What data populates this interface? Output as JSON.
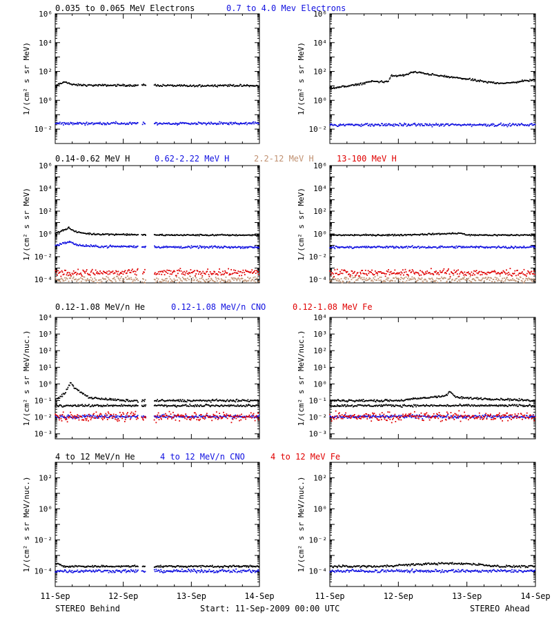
{
  "colors": {
    "black": "#000000",
    "blue": "#1010e0",
    "tan": "#c09070",
    "red": "#e00000"
  },
  "x_ticks": [
    "11-Sep",
    "12-Sep",
    "13-Sep",
    "14-Sep"
  ],
  "footer": {
    "left": "STEREO Behind",
    "center": "Start: 11-Sep-2009 00:00 UTC",
    "right": "STEREO Ahead"
  },
  "rows": [
    {
      "legend": [
        {
          "text": "0.035 to 0.065 MeV Electrons",
          "color": "black"
        },
        {
          "text": "0.7 to 4.0 Mev Electrons",
          "color": "blue"
        }
      ],
      "ylabel": "1/(cm² s sr MeV)",
      "yticks": [
        {
          "exp": -2,
          "label": "10⁻²"
        },
        {
          "exp": 0,
          "label": "10⁰"
        },
        {
          "exp": 2,
          "label": "10²"
        },
        {
          "exp": 4,
          "label": "10⁴"
        },
        {
          "exp": 6,
          "label": "10⁶"
        }
      ]
    },
    {
      "legend": [
        {
          "text": "0.14-0.62 MeV H",
          "color": "black"
        },
        {
          "text": "0.62-2.22 MeV H",
          "color": "blue"
        },
        {
          "text": "2.2-12 MeV H",
          "color": "tan"
        },
        {
          "text": "13-100 MeV H",
          "color": "red"
        }
      ],
      "ylabel": "1/(cm² s sr MeV)",
      "yticks": [
        {
          "exp": -4,
          "label": "10⁻⁴"
        },
        {
          "exp": -2,
          "label": "10⁻²"
        },
        {
          "exp": 0,
          "label": "10⁰"
        },
        {
          "exp": 2,
          "label": "10²"
        },
        {
          "exp": 4,
          "label": "10⁴"
        },
        {
          "exp": 6,
          "label": "10⁶"
        }
      ]
    },
    {
      "legend": [
        {
          "text": "0.12-1.08 MeV/n He",
          "color": "black"
        },
        {
          "text": "0.12-1.08 MeV/n CNO",
          "color": "blue"
        },
        {
          "text": "0.12-1.08 MeV Fe",
          "color": "red"
        }
      ],
      "ylabel": "1/(cm² s sr MeV/nuc.)",
      "yticks": [
        {
          "exp": -3,
          "label": "10⁻³"
        },
        {
          "exp": -2,
          "label": "10⁻²"
        },
        {
          "exp": -1,
          "label": "10⁻¹"
        },
        {
          "exp": 0,
          "label": "10⁰"
        },
        {
          "exp": 1,
          "label": "10¹"
        },
        {
          "exp": 2,
          "label": "10²"
        },
        {
          "exp": 3,
          "label": "10³"
        },
        {
          "exp": 4,
          "label": "10⁴"
        }
      ]
    },
    {
      "legend": [
        {
          "text": "4 to 12 MeV/n He",
          "color": "black"
        },
        {
          "text": "4 to 12 MeV/n CNO",
          "color": "blue"
        },
        {
          "text": "4 to 12 MeV Fe",
          "color": "red"
        }
      ],
      "ylabel": "1/(cm² s sr MeV/nuc.)",
      "yticks": [
        {
          "exp": -4,
          "label": "10⁻⁴"
        },
        {
          "exp": -2,
          "label": "10⁻²"
        },
        {
          "exp": 0,
          "label": "10⁰"
        },
        {
          "exp": 2,
          "label": "10²"
        }
      ]
    }
  ],
  "chart_data": [
    {
      "panel": "row1-behind",
      "type": "scatter",
      "yscale": "log",
      "ylim": [
        0.001,
        1000000
      ],
      "xlim": [
        "11-Sep-2009",
        "14-Sep-2009"
      ],
      "series": [
        {
          "color": "black",
          "points": [
            [
              0.0,
              10
            ],
            [
              0.15,
              20
            ],
            [
              0.25,
              12
            ],
            [
              0.5,
              11
            ],
            [
              1.0,
              11
            ],
            [
              1.2,
              11
            ],
            [
              1.38,
              12
            ],
            [
              1.5,
              11
            ],
            [
              2.0,
              10
            ],
            [
              2.5,
              11
            ],
            [
              3.0,
              10
            ]
          ]
        },
        {
          "color": "blue",
          "points": [
            [
              0.0,
              0.025
            ],
            [
              0.5,
              0.025
            ],
            [
              1.0,
              0.025
            ],
            [
              1.25,
              0.025
            ],
            [
              1.5,
              0.025
            ],
            [
              2.0,
              0.025
            ],
            [
              2.5,
              0.025
            ],
            [
              3.0,
              0.025
            ]
          ]
        }
      ],
      "gaps": [
        [
          1.22,
          1.27
        ],
        [
          1.33,
          1.45
        ]
      ]
    },
    {
      "panel": "row1-ahead",
      "type": "scatter",
      "yscale": "log",
      "ylim": [
        0.001,
        1000000
      ],
      "xlim": [
        "11-Sep-2009",
        "14-Sep-2009"
      ],
      "series": [
        {
          "color": "black",
          "points": [
            [
              0.0,
              7
            ],
            [
              0.3,
              10
            ],
            [
              0.6,
              20
            ],
            [
              0.85,
              20
            ],
            [
              0.9,
              50
            ],
            [
              1.1,
              55
            ],
            [
              1.2,
              90
            ],
            [
              1.35,
              80
            ],
            [
              1.6,
              50
            ],
            [
              2.0,
              30
            ],
            [
              2.3,
              18
            ],
            [
              2.6,
              15
            ],
            [
              2.8,
              22
            ],
            [
              3.0,
              25
            ]
          ]
        },
        {
          "color": "blue",
          "points": [
            [
              0.0,
              0.02
            ],
            [
              0.5,
              0.02
            ],
            [
              1.0,
              0.02
            ],
            [
              1.5,
              0.02
            ],
            [
              2.0,
              0.02
            ],
            [
              2.5,
              0.02
            ],
            [
              3.0,
              0.02
            ]
          ]
        }
      ],
      "gaps": []
    },
    {
      "panel": "row2-behind",
      "type": "scatter",
      "yscale": "log",
      "ylim": [
        5e-05,
        1000000
      ],
      "xlim": [
        "11-Sep-2009",
        "14-Sep-2009"
      ],
      "series": [
        {
          "color": "black",
          "points": [
            [
              0.0,
              1.2
            ],
            [
              0.1,
              2
            ],
            [
              0.2,
              3.5
            ],
            [
              0.3,
              1.5
            ],
            [
              0.5,
              1
            ],
            [
              1.0,
              0.9
            ],
            [
              1.5,
              0.8
            ],
            [
              2.0,
              0.8
            ],
            [
              2.5,
              0.8
            ],
            [
              3.0,
              0.8
            ]
          ]
        },
        {
          "color": "blue",
          "points": [
            [
              0.0,
              0.1
            ],
            [
              0.2,
              0.2
            ],
            [
              0.35,
              0.1
            ],
            [
              0.6,
              0.08
            ],
            [
              1.0,
              0.08
            ],
            [
              1.5,
              0.07
            ],
            [
              2.0,
              0.07
            ],
            [
              2.5,
              0.07
            ],
            [
              3.0,
              0.07
            ]
          ]
        },
        {
          "color": "tan",
          "points": [
            [
              0.0,
              0.0001
            ],
            [
              1.0,
              0.0001
            ],
            [
              2.0,
              0.0001
            ],
            [
              3.0,
              0.0001
            ]
          ]
        },
        {
          "color": "red",
          "points": [
            [
              0.0,
              0.0004
            ],
            [
              1.0,
              0.0004
            ],
            [
              2.0,
              0.0004
            ],
            [
              3.0,
              0.0004
            ]
          ]
        }
      ],
      "gaps": [
        [
          1.22,
          1.27
        ],
        [
          1.33,
          1.45
        ]
      ]
    },
    {
      "panel": "row2-ahead",
      "type": "scatter",
      "yscale": "log",
      "ylim": [
        5e-05,
        1000000
      ],
      "xlim": [
        "11-Sep-2009",
        "14-Sep-2009"
      ],
      "series": [
        {
          "color": "black",
          "points": [
            [
              0.0,
              0.8
            ],
            [
              1.0,
              0.8
            ],
            [
              1.8,
              1.1
            ],
            [
              1.9,
              1.2
            ],
            [
              2.0,
              0.8
            ],
            [
              2.5,
              0.8
            ],
            [
              3.0,
              0.8
            ]
          ]
        },
        {
          "color": "blue",
          "points": [
            [
              0.0,
              0.07
            ],
            [
              1.0,
              0.07
            ],
            [
              2.0,
              0.07
            ],
            [
              3.0,
              0.07
            ]
          ]
        },
        {
          "color": "tan",
          "points": [
            [
              0.0,
              0.0001
            ],
            [
              1.5,
              0.0001
            ],
            [
              3.0,
              0.0001
            ]
          ]
        },
        {
          "color": "red",
          "points": [
            [
              0.0,
              0.0004
            ],
            [
              1.5,
              0.0004
            ],
            [
              3.0,
              0.0004
            ]
          ]
        }
      ],
      "gaps": []
    },
    {
      "panel": "row3-behind",
      "type": "scatter",
      "yscale": "log",
      "ylim": [
        0.0005,
        10000
      ],
      "xlim": [
        "11-Sep-2009",
        "14-Sep-2009"
      ],
      "series": [
        {
          "color": "black",
          "points": [
            [
              0.0,
              0.1
            ],
            [
              0.15,
              0.3
            ],
            [
              0.22,
              1.2
            ],
            [
              0.3,
              0.5
            ],
            [
              0.5,
              0.15
            ],
            [
              1.0,
              0.1
            ],
            [
              2.0,
              0.1
            ],
            [
              3.0,
              0.1
            ]
          ]
        },
        {
          "color": "black",
          "baseline": 0.05,
          "points": [
            [
              0.0,
              0.05
            ],
            [
              3.0,
              0.05
            ]
          ]
        },
        {
          "color": "blue",
          "points": [
            [
              0.0,
              0.011
            ],
            [
              3.0,
              0.011
            ]
          ]
        },
        {
          "color": "red",
          "points": [
            [
              0.0,
              0.011
            ],
            [
              3.0,
              0.011
            ]
          ]
        }
      ],
      "gaps": [
        [
          1.22,
          1.27
        ],
        [
          1.33,
          1.45
        ]
      ]
    },
    {
      "panel": "row3-ahead",
      "type": "scatter",
      "yscale": "log",
      "ylim": [
        0.0005,
        10000
      ],
      "xlim": [
        "11-Sep-2009",
        "14-Sep-2009"
      ],
      "series": [
        {
          "color": "black",
          "points": [
            [
              0.0,
              0.1
            ],
            [
              1.0,
              0.1
            ],
            [
              1.7,
              0.2
            ],
            [
              1.75,
              0.35
            ],
            [
              1.85,
              0.15
            ],
            [
              2.5,
              0.12
            ],
            [
              3.0,
              0.1
            ]
          ]
        },
        {
          "color": "black",
          "baseline": 0.05,
          "points": [
            [
              0.0,
              0.05
            ],
            [
              3.0,
              0.05
            ]
          ]
        },
        {
          "color": "blue",
          "points": [
            [
              0.0,
              0.011
            ],
            [
              3.0,
              0.011
            ]
          ]
        },
        {
          "color": "red",
          "points": [
            [
              0.0,
              0.011
            ],
            [
              3.0,
              0.011
            ]
          ]
        }
      ],
      "gaps": []
    },
    {
      "panel": "row4-behind",
      "type": "scatter",
      "yscale": "log",
      "ylim": [
        1e-05,
        1000
      ],
      "xlim": [
        "11-Sep-2009",
        "14-Sep-2009"
      ],
      "series": [
        {
          "color": "blue",
          "points": [
            [
              0.0,
              0.0001
            ],
            [
              3.0,
              0.0001
            ]
          ]
        },
        {
          "color": "black",
          "points": [
            [
              0.05,
              0.0003
            ],
            [
              0.1,
              0.0002
            ],
            [
              2.0,
              0.0002
            ],
            [
              2.6,
              0.0002
            ]
          ]
        }
      ],
      "gaps": [
        [
          1.22,
          1.27
        ],
        [
          1.33,
          1.45
        ]
      ]
    },
    {
      "panel": "row4-ahead",
      "type": "scatter",
      "yscale": "log",
      "ylim": [
        1e-05,
        1000
      ],
      "xlim": [
        "11-Sep-2009",
        "14-Sep-2009"
      ],
      "series": [
        {
          "color": "blue",
          "points": [
            [
              0.0,
              0.0001
            ],
            [
              3.0,
              0.0001
            ]
          ]
        },
        {
          "color": "black",
          "points": [
            [
              0.7,
              0.0002
            ],
            [
              1.5,
              0.0003
            ],
            [
              2.0,
              0.0003
            ],
            [
              2.5,
              0.0002
            ]
          ]
        }
      ],
      "gaps": []
    }
  ]
}
